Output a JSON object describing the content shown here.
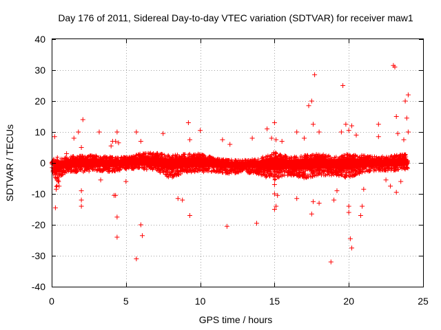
{
  "chart_data": {
    "type": "scatter",
    "title": "Day 176 of 2011, Sidereal Day-to-day VTEC variation (SDTVAR) for receiver maw1",
    "xlabel": "GPS time / hours",
    "ylabel": "SDTVAR / TECUs",
    "xlim": [
      0,
      25
    ],
    "ylim": [
      -40,
      40
    ],
    "xticks": [
      0,
      5,
      10,
      15,
      20,
      25
    ],
    "yticks": [
      -40,
      -30,
      -20,
      -10,
      0,
      10,
      20,
      30,
      40
    ],
    "xtick_labels": [
      "0",
      "5",
      "10",
      "15",
      "20",
      "25"
    ],
    "ytick_labels": [
      "-40",
      "-30",
      "-20",
      "-10",
      "0",
      "10",
      "20",
      "30",
      "40"
    ],
    "grid": true,
    "marker": "+",
    "color": "#ff0000",
    "series": [
      {
        "name": "SDTVAR",
        "band": {
          "note": "dense continuous cloud of points between 0 and 24 h, approximate envelope",
          "x": [
            0.0,
            0.3,
            0.6,
            1.0,
            2.0,
            3.0,
            4.0,
            5.0,
            6.0,
            7.0,
            8.0,
            9.0,
            10.0,
            11.0,
            12.0,
            13.0,
            14.0,
            15.0,
            16.0,
            17.0,
            18.0,
            19.0,
            20.0,
            21.0,
            22.0,
            23.0,
            24.0
          ],
          "upper": [
            1.0,
            2.0,
            1.5,
            2.0,
            2.5,
            2.5,
            2.0,
            2.0,
            3.0,
            3.5,
            2.5,
            3.0,
            3.0,
            1.5,
            1.0,
            1.0,
            1.5,
            3.5,
            2.0,
            2.5,
            3.0,
            2.0,
            3.0,
            2.5,
            2.0,
            2.5,
            3.0
          ],
          "lower": [
            -2.0,
            -8.0,
            -5.0,
            -3.0,
            -3.0,
            -2.5,
            -3.0,
            -2.0,
            -2.0,
            -2.5,
            -5.0,
            -3.0,
            -3.0,
            -3.0,
            -3.5,
            -3.0,
            -4.0,
            -5.5,
            -4.0,
            -5.0,
            -4.0,
            -4.0,
            -5.0,
            -3.0,
            -2.5,
            -2.5,
            -2.0
          ]
        },
        "points": [
          [
            0.2,
            8.5
          ],
          [
            0.25,
            -14.5
          ],
          [
            0.3,
            -8.5
          ],
          [
            0.5,
            -7.5
          ],
          [
            1.0,
            3.0
          ],
          [
            1.5,
            8.0
          ],
          [
            1.8,
            10.0
          ],
          [
            2.0,
            5.0
          ],
          [
            2.1,
            14.0
          ],
          [
            2.0,
            -12.0
          ],
          [
            2.0,
            -14.0
          ],
          [
            2.0,
            -9.0
          ],
          [
            3.2,
            10.0
          ],
          [
            3.3,
            -5.5
          ],
          [
            4.0,
            5.5
          ],
          [
            4.1,
            7.0
          ],
          [
            4.3,
            7.0
          ],
          [
            4.3,
            -10.5
          ],
          [
            4.2,
            -10.5
          ],
          [
            4.4,
            -17.5
          ],
          [
            4.4,
            -24.0
          ],
          [
            4.4,
            10.0
          ],
          [
            4.5,
            6.5
          ],
          [
            5.0,
            -6.0
          ],
          [
            5.7,
            10.0
          ],
          [
            5.7,
            -31.0
          ],
          [
            6.0,
            7.0
          ],
          [
            6.0,
            -20.0
          ],
          [
            6.1,
            -23.5
          ],
          [
            7.5,
            9.5
          ],
          [
            8.5,
            -11.5
          ],
          [
            8.8,
            -12.0
          ],
          [
            9.2,
            13.0
          ],
          [
            9.3,
            -17.0
          ],
          [
            9.3,
            7.5
          ],
          [
            10.0,
            10.5
          ],
          [
            11.5,
            7.5
          ],
          [
            12.0,
            6.0
          ],
          [
            11.8,
            -20.5
          ],
          [
            13.5,
            8.0
          ],
          [
            13.8,
            -19.5
          ],
          [
            14.5,
            11.0
          ],
          [
            14.8,
            8.0
          ],
          [
            15.0,
            13.0
          ],
          [
            15.1,
            7.5
          ],
          [
            15.0,
            -7.0
          ],
          [
            15.0,
            -10.0
          ],
          [
            15.1,
            -14.0
          ],
          [
            15.0,
            -15.0
          ],
          [
            15.2,
            -10.5
          ],
          [
            15.5,
            7.0
          ],
          [
            16.5,
            10.0
          ],
          [
            16.5,
            -11.5
          ],
          [
            17.0,
            8.0
          ],
          [
            17.3,
            18.5
          ],
          [
            17.5,
            20.0
          ],
          [
            17.6,
            12.5
          ],
          [
            17.7,
            28.5
          ],
          [
            17.5,
            -16.5
          ],
          [
            17.6,
            -12.5
          ],
          [
            18.0,
            10.0
          ],
          [
            18.0,
            -13.0
          ],
          [
            18.8,
            -32.0
          ],
          [
            19.0,
            -12.0
          ],
          [
            19.2,
            -9.0
          ],
          [
            19.6,
            25.0
          ],
          [
            19.8,
            12.5
          ],
          [
            19.5,
            10.0
          ],
          [
            20.0,
            10.5
          ],
          [
            20.2,
            12.0
          ],
          [
            20.0,
            -14.0
          ],
          [
            20.0,
            -16.0
          ],
          [
            20.1,
            -24.5
          ],
          [
            20.2,
            -27.5
          ],
          [
            20.5,
            9.0
          ],
          [
            20.8,
            -17.0
          ],
          [
            20.9,
            -14.0
          ],
          [
            21.0,
            -8.5
          ],
          [
            22.0,
            12.5
          ],
          [
            22.5,
            -5.5
          ],
          [
            23.0,
            31.5
          ],
          [
            23.1,
            31.0
          ],
          [
            23.2,
            15.0
          ],
          [
            23.3,
            9.5
          ],
          [
            23.7,
            7.5
          ],
          [
            23.8,
            20.0
          ],
          [
            24.0,
            22.0
          ],
          [
            23.9,
            14.5
          ],
          [
            23.2,
            -9.5
          ],
          [
            22.8,
            -7.5
          ],
          [
            23.5,
            -6.0
          ],
          [
            24.0,
            10.0
          ],
          [
            22.0,
            8.5
          ]
        ]
      }
    ]
  }
}
